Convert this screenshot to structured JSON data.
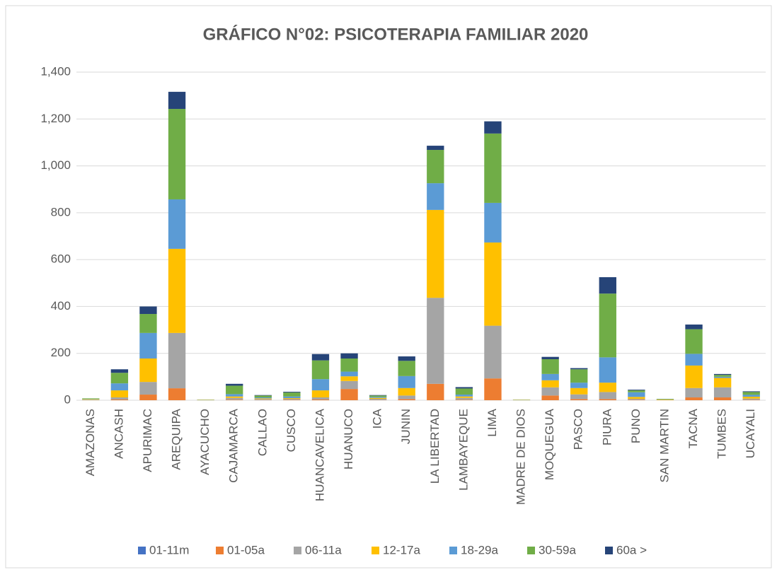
{
  "chart_data": {
    "type": "stacked_bar",
    "title": "GRÁFICO N°02: PSICOTERAPIA FAMILIAR 2020",
    "categories": [
      "AMAZONAS",
      "ANCASH",
      "APURIMAC",
      "AREQUIPA",
      "AYACUCHO",
      "CAJAMARCA",
      "CALLAO",
      "CUSCO",
      "HUANCAVELICA",
      "HUANUCO",
      "ICA",
      "JUNIN",
      "LA LIBERTAD",
      "LAMBAYEQUE",
      "LIMA",
      "MADRE DE DIOS",
      "MOQUEGUA",
      "PASCO",
      "PIURA",
      "PUNO",
      "SAN MARTIN",
      "TACNA",
      "TUMBES",
      "UCAYALI"
    ],
    "series": [
      {
        "name": "01-11m",
        "color": "#4472c4",
        "values": [
          0,
          0,
          0,
          0,
          0,
          0,
          0,
          0,
          0,
          0,
          0,
          0,
          0,
          0,
          0,
          0,
          0,
          0,
          0,
          0,
          0,
          0,
          0,
          0
        ]
      },
      {
        "name": "01-05a",
        "color": "#ed7d31",
        "values": [
          0,
          3,
          24,
          51,
          0,
          2,
          1,
          2,
          3,
          48,
          1,
          5,
          70,
          2,
          93,
          0,
          20,
          5,
          5,
          2,
          0,
          12,
          12,
          2
        ]
      },
      {
        "name": "06-11a",
        "color": "#a5a5a5",
        "values": [
          2,
          9,
          54,
          236,
          1,
          8,
          4,
          4,
          9,
          34,
          5,
          15,
          367,
          8,
          225,
          1,
          35,
          20,
          30,
          4,
          1,
          40,
          43,
          5
        ]
      },
      {
        "name": "12-17a",
        "color": "#ffc000",
        "values": [
          2,
          30,
          100,
          359,
          1,
          6,
          3,
          3,
          30,
          20,
          4,
          32,
          375,
          6,
          355,
          1,
          30,
          27,
          40,
          8,
          2,
          96,
          40,
          8
        ]
      },
      {
        "name": "18-29a",
        "color": "#5b9bd5",
        "values": [
          1,
          30,
          109,
          211,
          0,
          10,
          4,
          7,
          48,
          20,
          4,
          51,
          114,
          8,
          169,
          0,
          27,
          23,
          108,
          20,
          1,
          50,
          5,
          8
        ]
      },
      {
        "name": "30-59a",
        "color": "#70ad47",
        "values": [
          3,
          45,
          81,
          386,
          1,
          36,
          8,
          17,
          80,
          56,
          6,
          65,
          142,
          26,
          296,
          1,
          63,
          57,
          272,
          8,
          2,
          105,
          8,
          12
        ]
      },
      {
        "name": "60a >",
        "color": "#264478",
        "values": [
          0,
          15,
          32,
          73,
          0,
          8,
          2,
          3,
          27,
          22,
          2,
          19,
          18,
          6,
          52,
          0,
          10,
          5,
          70,
          3,
          0,
          20,
          4,
          3
        ]
      }
    ],
    "ylim": [
      0,
      1400
    ],
    "yticks": [
      0,
      200,
      400,
      600,
      800,
      {
        "value": 1000,
        "label": "1,000"
      },
      {
        "value": 1200,
        "label": "1,200"
      },
      {
        "value": 1400,
        "label": "1,400"
      }
    ],
    "grid": true,
    "legend": "bottom"
  }
}
